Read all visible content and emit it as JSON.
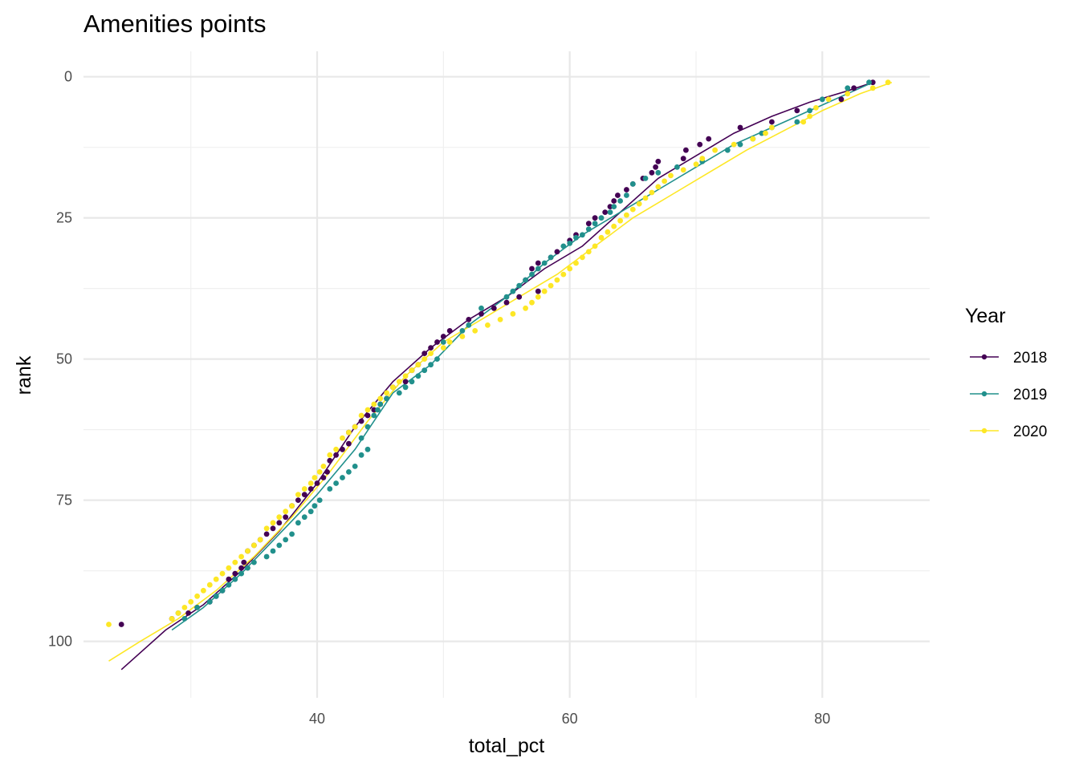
{
  "chart_data": {
    "type": "scatter",
    "title": "Amenities points",
    "xlabel": "total_pct",
    "ylabel": "rank",
    "xlim": [
      21.5,
      88.5
    ],
    "ylim": [
      110,
      -4.5
    ],
    "y_reversed": true,
    "grid": true,
    "x_ticks": [
      40,
      60,
      80
    ],
    "x_tick_labels": [
      "40",
      "60",
      "80"
    ],
    "y_ticks": [
      0,
      25,
      50,
      75,
      100
    ],
    "y_tick_labels": [
      "0",
      "25",
      "50",
      "75",
      "100"
    ],
    "legend": {
      "title": "Year",
      "placement": "right"
    },
    "series": [
      {
        "name": "2018",
        "color": "#440154",
        "points": [
          [
            84,
            1
          ],
          [
            82.5,
            2
          ],
          [
            81.5,
            4
          ],
          [
            78,
            6
          ],
          [
            76,
            8
          ],
          [
            73.5,
            9
          ],
          [
            71,
            11
          ],
          [
            70.3,
            12
          ],
          [
            69.2,
            13
          ],
          [
            69,
            14.5
          ],
          [
            67,
            15
          ],
          [
            66.8,
            16
          ],
          [
            66.5,
            17
          ],
          [
            65.8,
            18
          ],
          [
            65,
            19
          ],
          [
            64.5,
            20
          ],
          [
            63.8,
            21
          ],
          [
            63.5,
            22
          ],
          [
            63.2,
            23
          ],
          [
            62.8,
            24
          ],
          [
            62,
            25
          ],
          [
            61.5,
            26
          ],
          [
            60.5,
            28
          ],
          [
            60,
            29
          ],
          [
            59,
            31
          ],
          [
            58.5,
            32
          ],
          [
            57.5,
            33
          ],
          [
            57,
            34
          ],
          [
            56.5,
            36
          ],
          [
            57.5,
            38
          ],
          [
            56,
            39
          ],
          [
            55,
            40
          ],
          [
            54,
            41
          ],
          [
            53,
            42
          ],
          [
            52,
            43
          ],
          [
            50.5,
            45
          ],
          [
            50,
            46
          ],
          [
            49.5,
            47
          ],
          [
            49,
            48
          ],
          [
            48.5,
            49
          ],
          [
            48,
            51
          ],
          [
            47.5,
            52
          ],
          [
            47,
            54
          ],
          [
            46,
            55
          ],
          [
            45.5,
            57
          ],
          [
            45,
            58
          ],
          [
            44.5,
            59
          ],
          [
            44,
            60
          ],
          [
            43.5,
            61
          ],
          [
            43,
            62
          ],
          [
            42.5,
            63
          ],
          [
            42.5,
            65
          ],
          [
            42,
            66
          ],
          [
            41.5,
            67
          ],
          [
            41,
            68
          ],
          [
            40.8,
            70
          ],
          [
            40.5,
            71
          ],
          [
            40,
            72
          ],
          [
            39.5,
            73
          ],
          [
            39,
            74
          ],
          [
            38.5,
            75
          ],
          [
            38,
            76
          ],
          [
            37.5,
            78
          ],
          [
            37,
            79
          ],
          [
            36.5,
            80
          ],
          [
            36,
            81
          ],
          [
            35.5,
            82
          ],
          [
            35,
            83
          ],
          [
            34.5,
            84
          ],
          [
            34.2,
            86
          ],
          [
            34,
            87
          ],
          [
            33.5,
            88
          ],
          [
            33,
            89
          ],
          [
            32.5,
            91
          ],
          [
            32,
            92
          ],
          [
            31.5,
            93
          ],
          [
            30.5,
            94
          ],
          [
            29.8,
            95
          ],
          [
            28.5,
            96
          ],
          [
            24.5,
            97
          ]
        ],
        "trend": [
          [
            24.5,
            105
          ],
          [
            28,
            98
          ],
          [
            31,
            93.5
          ],
          [
            34,
            87.5
          ],
          [
            37,
            80.5
          ],
          [
            40,
            72
          ],
          [
            43,
            62
          ],
          [
            46,
            54
          ],
          [
            49,
            48
          ],
          [
            52,
            43
          ],
          [
            55,
            39
          ],
          [
            58,
            34
          ],
          [
            61,
            30
          ],
          [
            64,
            24
          ],
          [
            67,
            18
          ],
          [
            70,
            14
          ],
          [
            73,
            10
          ],
          [
            76,
            7
          ],
          [
            79,
            4.5
          ],
          [
            82,
            2.5
          ],
          [
            84,
            1
          ]
        ]
      },
      {
        "name": "2019",
        "color": "#21908C",
        "points": [
          [
            83.7,
            1
          ],
          [
            82,
            2
          ],
          [
            80,
            4
          ],
          [
            79,
            6
          ],
          [
            78,
            8
          ],
          [
            76,
            9
          ],
          [
            75.2,
            10
          ],
          [
            74.5,
            11
          ],
          [
            73.5,
            12
          ],
          [
            72.5,
            13
          ],
          [
            70.5,
            15
          ],
          [
            68.5,
            16
          ],
          [
            67,
            17
          ],
          [
            66,
            18
          ],
          [
            65,
            19
          ],
          [
            64.5,
            21
          ],
          [
            64,
            22
          ],
          [
            63.5,
            23
          ],
          [
            63.2,
            24
          ],
          [
            62.5,
            25
          ],
          [
            62,
            26
          ],
          [
            61.5,
            27
          ],
          [
            61,
            28
          ],
          [
            60.5,
            28.5
          ],
          [
            60,
            29.5
          ],
          [
            59.5,
            30
          ],
          [
            58.5,
            32
          ],
          [
            58,
            33
          ],
          [
            57.5,
            34
          ],
          [
            57,
            35
          ],
          [
            56.5,
            36
          ],
          [
            56,
            37
          ],
          [
            55.5,
            38
          ],
          [
            55,
            39
          ],
          [
            53,
            41
          ],
          [
            52,
            44
          ],
          [
            51.5,
            45
          ],
          [
            50,
            47
          ],
          [
            49.5,
            50
          ],
          [
            49,
            51
          ],
          [
            48.5,
            52
          ],
          [
            48,
            53
          ],
          [
            47.5,
            54
          ],
          [
            47,
            55
          ],
          [
            46.5,
            56
          ],
          [
            45.5,
            57
          ],
          [
            45,
            58
          ],
          [
            44.8,
            59
          ],
          [
            44.5,
            60
          ],
          [
            44,
            62
          ],
          [
            43.5,
            64
          ],
          [
            44,
            66
          ],
          [
            43.5,
            67
          ],
          [
            43,
            69
          ],
          [
            42.5,
            70
          ],
          [
            42,
            71
          ],
          [
            41.5,
            72
          ],
          [
            41,
            73
          ],
          [
            40.2,
            75
          ],
          [
            39.8,
            76
          ],
          [
            39.5,
            77
          ],
          [
            39,
            78
          ],
          [
            38.5,
            79
          ],
          [
            38,
            81
          ],
          [
            37.5,
            82
          ],
          [
            37,
            83
          ],
          [
            36.5,
            84
          ],
          [
            36,
            85
          ],
          [
            35,
            86
          ],
          [
            34.5,
            87
          ],
          [
            34,
            88
          ],
          [
            33.5,
            89
          ],
          [
            33,
            90
          ],
          [
            32.5,
            91
          ],
          [
            32,
            92
          ],
          [
            31.5,
            93
          ],
          [
            30.5,
            94
          ],
          [
            29,
            95
          ],
          [
            29.5,
            96
          ]
        ],
        "trend": [
          [
            28.5,
            98
          ],
          [
            31,
            94
          ],
          [
            34,
            88
          ],
          [
            37,
            81
          ],
          [
            40,
            74
          ],
          [
            43,
            66
          ],
          [
            46,
            56
          ],
          [
            49,
            51
          ],
          [
            52,
            44
          ],
          [
            55,
            39
          ],
          [
            58,
            33
          ],
          [
            61,
            28
          ],
          [
            64,
            24
          ],
          [
            67,
            20
          ],
          [
            70,
            16
          ],
          [
            73,
            12
          ],
          [
            76,
            9
          ],
          [
            79,
            6
          ],
          [
            82,
            3
          ],
          [
            84,
            1
          ]
        ]
      },
      {
        "name": "2020",
        "color": "#FDE725",
        "points": [
          [
            85.2,
            1
          ],
          [
            84,
            2
          ],
          [
            82,
            3
          ],
          [
            80.5,
            4
          ],
          [
            79.5,
            5.5
          ],
          [
            79,
            7
          ],
          [
            78.5,
            8
          ],
          [
            76,
            9
          ],
          [
            75.5,
            10
          ],
          [
            74.5,
            11
          ],
          [
            73,
            12
          ],
          [
            71.5,
            13
          ],
          [
            70.5,
            14.5
          ],
          [
            70,
            15.5
          ],
          [
            69,
            16.5
          ],
          [
            68,
            17.5
          ],
          [
            67.5,
            18.5
          ],
          [
            67,
            19.5
          ],
          [
            66.5,
            20.5
          ],
          [
            66,
            21.5
          ],
          [
            65.5,
            22.5
          ],
          [
            65,
            23.5
          ],
          [
            64.5,
            24.5
          ],
          [
            64,
            25.5
          ],
          [
            63.5,
            26.5
          ],
          [
            63,
            27.5
          ],
          [
            62.5,
            28.5
          ],
          [
            62,
            30
          ],
          [
            61.5,
            31
          ],
          [
            61,
            32
          ],
          [
            60.5,
            33
          ],
          [
            60,
            34
          ],
          [
            59.5,
            35
          ],
          [
            59,
            36
          ],
          [
            58.5,
            37
          ],
          [
            58,
            38
          ],
          [
            57.5,
            39
          ],
          [
            57,
            40
          ],
          [
            56.5,
            41
          ],
          [
            55.5,
            42
          ],
          [
            54.5,
            43
          ],
          [
            53.5,
            44
          ],
          [
            52.5,
            45
          ],
          [
            51.5,
            46
          ],
          [
            50.5,
            47
          ],
          [
            50,
            48
          ],
          [
            49,
            49
          ],
          [
            48.5,
            50
          ],
          [
            48,
            51
          ],
          [
            47.5,
            52
          ],
          [
            47,
            53
          ],
          [
            46.5,
            54
          ],
          [
            46,
            55
          ],
          [
            45.5,
            56
          ],
          [
            45,
            57
          ],
          [
            44.5,
            58
          ],
          [
            44,
            59
          ],
          [
            43.5,
            60
          ],
          [
            43,
            62
          ],
          [
            42.5,
            63
          ],
          [
            42,
            64
          ],
          [
            41.5,
            66
          ],
          [
            41,
            67
          ],
          [
            40.5,
            69
          ],
          [
            40.2,
            70
          ],
          [
            39.8,
            71
          ],
          [
            39.5,
            72
          ],
          [
            39,
            73
          ],
          [
            38.5,
            74
          ],
          [
            38,
            76
          ],
          [
            37.5,
            77
          ],
          [
            37,
            78
          ],
          [
            36.5,
            79
          ],
          [
            36,
            80
          ],
          [
            35.5,
            82
          ],
          [
            35,
            83
          ],
          [
            34.5,
            84
          ],
          [
            34,
            85
          ],
          [
            33.5,
            86
          ],
          [
            33,
            87
          ],
          [
            32.5,
            88
          ],
          [
            32,
            89
          ],
          [
            31.5,
            90
          ],
          [
            31,
            91
          ],
          [
            30.5,
            92
          ],
          [
            30,
            93
          ],
          [
            29.5,
            94
          ],
          [
            29,
            95
          ],
          [
            28.5,
            96
          ],
          [
            23.5,
            97
          ]
        ],
        "trend": [
          [
            23.5,
            103.5
          ],
          [
            26,
            100
          ],
          [
            29,
            96
          ],
          [
            32,
            91
          ],
          [
            35,
            85
          ],
          [
            38,
            78
          ],
          [
            41,
            70
          ],
          [
            44,
            61
          ],
          [
            47,
            53
          ],
          [
            50,
            47
          ],
          [
            53,
            43
          ],
          [
            56,
            39
          ],
          [
            59,
            35
          ],
          [
            62,
            30
          ],
          [
            65,
            25
          ],
          [
            68,
            21
          ],
          [
            71,
            17
          ],
          [
            74,
            13
          ],
          [
            77,
            9.5
          ],
          [
            80,
            6
          ],
          [
            83,
            3
          ],
          [
            85.5,
            1
          ]
        ]
      }
    ]
  }
}
